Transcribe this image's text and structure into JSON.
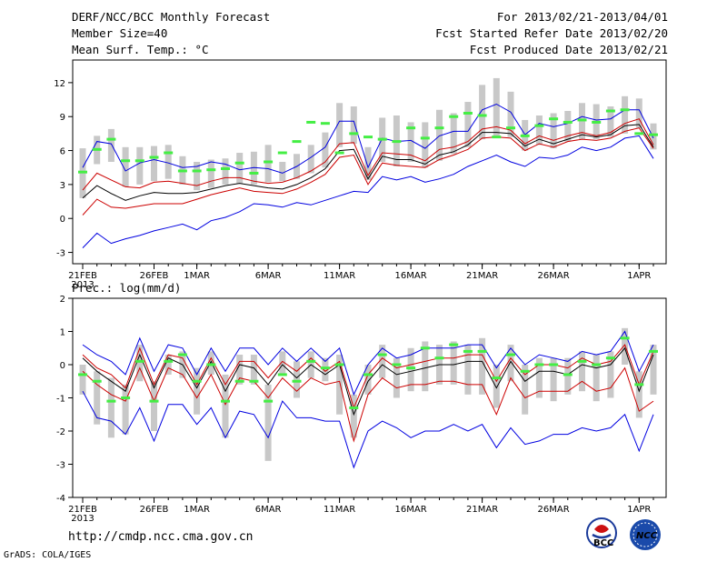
{
  "header": {
    "title": "DERF/NCC/BCC Monthly Forecast",
    "member_size": "Member Size=40",
    "variable": "Mean Surf. Temp.: °C",
    "forecast_period": "For 2013/02/21-2013/04/01",
    "fcst_started": "Fcst Started Refer Date 2013/02/20",
    "fcst_produced": "Fcst Produced Date 2013/02/21"
  },
  "footer": {
    "url": "http://cmdp.ncc.cma.gov.cn",
    "grads_credit": "GrADS: COLA/IGES",
    "logo_bcc_label": "BCC",
    "logo_ncc_label": "NCC"
  },
  "colors": {
    "blue": "#0000e0",
    "red": "#cc0000",
    "black": "#000000",
    "green": "#44ee44",
    "box": "#c8c8c8"
  },
  "chart_data": [
    {
      "type": "line",
      "title": "Mean Surf. Temp.: °C",
      "x_tick_labels": [
        "21FEB",
        "26FEB",
        "1MAR",
        "6MAR",
        "11MAR",
        "16MAR",
        "21MAR",
        "26MAR",
        "1APR"
      ],
      "x_tick_days": [
        0,
        5,
        8,
        13,
        18,
        23,
        28,
        33,
        39
      ],
      "x_sublabel": "2013",
      "ylim": [
        -4,
        14
      ],
      "y_ticks": [
        -3,
        0,
        3,
        6,
        9,
        12
      ],
      "series": [
        {
          "name": "upper",
          "color": "blue",
          "values": [
            4.5,
            6.8,
            6.6,
            4.2,
            4.9,
            5.2,
            4.9,
            4.5,
            4.6,
            5.0,
            4.8,
            4.3,
            4.5,
            4.4,
            4.0,
            4.6,
            5.4,
            6.3,
            8.6,
            8.6,
            4.5,
            7.1,
            6.8,
            6.9,
            6.2,
            7.3,
            7.7,
            7.7,
            9.6,
            10.1,
            9.4,
            7.4,
            8.4,
            8.1,
            8.4,
            9.0,
            8.7,
            8.8,
            9.6,
            9.6,
            7.1
          ]
        },
        {
          "name": "upper-mid",
          "color": "red",
          "values": [
            2.5,
            4.0,
            3.4,
            2.8,
            2.7,
            3.2,
            3.3,
            3.1,
            2.9,
            3.3,
            3.6,
            3.6,
            3.3,
            3.1,
            3.2,
            3.6,
            4.2,
            5.0,
            6.6,
            6.7,
            3.8,
            5.8,
            5.7,
            5.6,
            5.1,
            6.1,
            6.3,
            6.8,
            7.9,
            8.1,
            7.8,
            6.6,
            7.3,
            6.9,
            7.3,
            7.6,
            7.3,
            7.6,
            8.4,
            8.8,
            6.5
          ]
        },
        {
          "name": "mean",
          "color": "black",
          "values": [
            1.8,
            2.9,
            2.2,
            1.6,
            2.0,
            2.3,
            2.2,
            2.2,
            2.3,
            2.6,
            2.9,
            3.1,
            2.9,
            2.7,
            2.6,
            3.0,
            3.6,
            4.4,
            6.0,
            6.1,
            3.5,
            5.5,
            5.2,
            5.2,
            4.8,
            5.6,
            5.9,
            6.5,
            7.6,
            7.6,
            7.5,
            6.4,
            7.0,
            6.6,
            7.0,
            7.4,
            7.2,
            7.4,
            8.2,
            8.3,
            6.3
          ]
        },
        {
          "name": "lower-mid",
          "color": "red",
          "values": [
            0.3,
            1.7,
            1.0,
            0.9,
            1.1,
            1.3,
            1.3,
            1.3,
            1.7,
            2.1,
            2.4,
            2.7,
            2.4,
            2.3,
            2.2,
            2.6,
            3.2,
            3.9,
            5.4,
            5.6,
            3.0,
            4.9,
            4.7,
            4.6,
            4.5,
            5.2,
            5.6,
            6.1,
            7.1,
            7.2,
            7.1,
            6.0,
            6.6,
            6.3,
            6.8,
            7.0,
            6.9,
            7.1,
            7.7,
            8.0,
            6.2
          ]
        },
        {
          "name": "lower",
          "color": "blue",
          "values": [
            -2.6,
            -1.3,
            -2.2,
            -1.8,
            -1.5,
            -1.1,
            -0.8,
            -0.5,
            -1.0,
            -0.2,
            0.1,
            0.6,
            1.3,
            1.2,
            1.0,
            1.4,
            1.2,
            1.6,
            2.0,
            2.4,
            2.3,
            3.7,
            3.4,
            3.7,
            3.2,
            3.5,
            3.9,
            4.6,
            5.1,
            5.6,
            5.0,
            4.6,
            5.4,
            5.3,
            5.6,
            6.3,
            6.0,
            6.3,
            7.1,
            7.3,
            5.3
          ]
        }
      ],
      "ensemble_box_low": [
        1.8,
        4.8,
        5.0,
        2.8,
        3.0,
        3.3,
        3.5,
        3.0,
        2.5,
        2.7,
        3.0,
        3.1,
        3.0,
        3.2,
        3.3,
        3.5,
        4.0,
        4.5,
        6.3,
        6.6,
        3.4,
        5.0,
        4.6,
        5.0,
        4.5,
        5.1,
        5.7,
        6.3,
        7.0,
        7.1,
        7.2,
        6.0,
        6.5,
        6.2,
        6.8,
        7.0,
        7.0,
        7.2,
        7.5,
        8.0,
        6.1
      ],
      "ensemble_box_high": [
        6.2,
        7.3,
        7.9,
        6.3,
        6.3,
        6.4,
        6.5,
        5.5,
        5.0,
        5.2,
        5.3,
        5.8,
        5.9,
        6.5,
        5.0,
        5.7,
        6.5,
        7.6,
        10.2,
        9.9,
        6.3,
        8.9,
        9.1,
        8.5,
        8.5,
        9.6,
        9.3,
        10.3,
        11.8,
        12.4,
        11.2,
        8.7,
        9.1,
        9.3,
        9.5,
        10.2,
        10.1,
        9.9,
        10.8,
        10.6,
        8.4
      ],
      "ensemble_mean_mark": [
        4.1,
        6.1,
        7.0,
        5.1,
        5.1,
        5.4,
        5.8,
        4.2,
        4.2,
        4.3,
        4.4,
        4.9,
        4.0,
        5.0,
        5.8,
        6.8,
        8.5,
        8.4,
        5.8,
        7.5,
        7.2,
        7.0,
        6.8,
        8.0,
        7.1,
        8.0,
        9.0,
        9.3,
        9.1,
        7.2,
        8.0,
        7.3,
        8.2,
        8.8,
        8.5,
        8.7,
        8.5,
        9.5,
        9.6,
        7.5,
        7.4
      ]
    },
    {
      "type": "line",
      "title": "Prec.: log(mm/d)",
      "x_tick_labels": [
        "21FEB",
        "26FEB",
        "1MAR",
        "6MAR",
        "11MAR",
        "16MAR",
        "21MAR",
        "26MAR",
        "1APR"
      ],
      "x_tick_days": [
        0,
        5,
        8,
        13,
        18,
        23,
        28,
        33,
        39
      ],
      "x_sublabel": "2013",
      "ylim": [
        -4,
        2
      ],
      "y_ticks": [
        -4,
        -3,
        -2,
        -1,
        0,
        1,
        2
      ],
      "series": [
        {
          "name": "upper",
          "color": "blue",
          "values": [
            0.6,
            0.3,
            0.1,
            -0.3,
            0.8,
            -0.2,
            0.6,
            0.5,
            -0.3,
            0.5,
            -0.2,
            0.5,
            0.5,
            0.0,
            0.5,
            0.1,
            0.5,
            0.1,
            0.5,
            -0.9,
            0.0,
            0.5,
            0.2,
            0.3,
            0.5,
            0.5,
            0.5,
            0.6,
            0.6,
            -0.1,
            0.5,
            0.0,
            0.3,
            0.2,
            0.1,
            0.4,
            0.3,
            0.4,
            1.0,
            -0.2,
            0.6
          ]
        },
        {
          "name": "upper-mid",
          "color": "red",
          "values": [
            0.3,
            -0.1,
            -0.3,
            -0.7,
            0.5,
            -0.6,
            0.3,
            0.2,
            -0.6,
            0.2,
            -0.6,
            0.1,
            0.1,
            -0.4,
            0.1,
            -0.2,
            0.2,
            -0.2,
            0.1,
            -1.3,
            -0.3,
            0.2,
            -0.1,
            0.0,
            0.1,
            0.2,
            0.2,
            0.3,
            0.3,
            -0.5,
            0.2,
            -0.3,
            0.0,
            0.0,
            -0.1,
            0.2,
            0.0,
            0.1,
            0.6,
            -0.6,
            0.4
          ]
        },
        {
          "name": "mean",
          "color": "black",
          "values": [
            0.2,
            -0.2,
            -0.5,
            -0.8,
            0.3,
            -0.7,
            0.2,
            0.0,
            -0.7,
            0.1,
            -0.8,
            0.0,
            -0.1,
            -0.6,
            0.0,
            -0.4,
            0.0,
            -0.3,
            0.0,
            -1.5,
            -0.5,
            0.0,
            -0.3,
            -0.2,
            -0.1,
            0.0,
            0.0,
            0.1,
            0.1,
            -0.7,
            0.1,
            -0.5,
            -0.2,
            -0.2,
            -0.3,
            0.0,
            -0.1,
            0.0,
            0.5,
            -0.8,
            0.3
          ]
        },
        {
          "name": "lower-mid",
          "color": "red",
          "values": [
            -0.2,
            -0.6,
            -0.9,
            -1.1,
            -0.1,
            -1.1,
            -0.1,
            -0.3,
            -1.0,
            -0.3,
            -1.2,
            -0.4,
            -0.5,
            -1.0,
            -0.4,
            -0.8,
            -0.4,
            -0.6,
            -0.5,
            -2.3,
            -0.9,
            -0.4,
            -0.7,
            -0.6,
            -0.6,
            -0.5,
            -0.5,
            -0.6,
            -0.6,
            -1.5,
            -0.4,
            -1.0,
            -0.8,
            -0.8,
            -0.8,
            -0.5,
            -0.8,
            -0.7,
            -0.1,
            -1.4,
            -1.1
          ]
        },
        {
          "name": "lower",
          "color": "blue",
          "values": [
            -0.8,
            -1.6,
            -1.7,
            -2.1,
            -1.3,
            -2.3,
            -1.2,
            -1.2,
            -1.8,
            -1.3,
            -2.2,
            -1.4,
            -1.5,
            -2.2,
            -1.1,
            -1.6,
            -1.6,
            -1.7,
            -1.7,
            -3.1,
            -2.0,
            -1.7,
            -1.9,
            -2.2,
            -2.0,
            -2.0,
            -1.8,
            -2.0,
            -1.8,
            -2.5,
            -1.9,
            -2.4,
            -2.3,
            -2.1,
            -2.1,
            -1.9,
            -2.0,
            -1.9,
            -1.5,
            -2.6,
            -1.5
          ]
        }
      ],
      "ensemble_box_low": [
        -0.9,
        -1.8,
        -2.2,
        -2.1,
        -0.5,
        -2.0,
        -0.3,
        -0.4,
        -1.5,
        -0.3,
        -2.2,
        -0.6,
        -0.6,
        -2.9,
        -0.3,
        -1.0,
        -0.4,
        -0.5,
        -1.5,
        -2.2,
        -0.9,
        -0.4,
        -1.0,
        -0.8,
        -0.8,
        -0.6,
        -0.6,
        -0.9,
        -0.9,
        -1.3,
        -0.5,
        -1.5,
        -1.0,
        -1.1,
        -0.9,
        -0.8,
        -1.1,
        -1.0,
        0.0,
        -1.6,
        -0.9
      ],
      "ensemble_box_high": [
        0.0,
        -0.2,
        -0.4,
        -0.6,
        0.6,
        -0.5,
        0.3,
        0.4,
        -0.1,
        0.4,
        -0.3,
        0.3,
        0.3,
        -0.6,
        0.4,
        0.1,
        0.4,
        0.2,
        0.3,
        -0.9,
        0.0,
        0.6,
        0.2,
        0.5,
        0.7,
        0.6,
        0.7,
        0.6,
        0.8,
        0.0,
        0.6,
        0.0,
        0.2,
        0.2,
        0.2,
        0.4,
        0.3,
        0.4,
        1.1,
        -0.2,
        0.6
      ],
      "ensemble_mean_mark": [
        -0.3,
        -0.5,
        -1.1,
        -1.0,
        0.1,
        -1.1,
        0.1,
        0.3,
        -0.5,
        0.0,
        -1.1,
        -0.5,
        -0.5,
        -1.1,
        -0.3,
        -0.5,
        0.1,
        -0.1,
        0.0,
        -1.3,
        -0.3,
        0.3,
        0.0,
        -0.1,
        0.5,
        0.2,
        0.6,
        0.4,
        0.4,
        -0.4,
        0.3,
        -0.2,
        0.0,
        0.0,
        -0.3,
        0.1,
        0.0,
        0.2,
        0.8,
        -0.6,
        0.4
      ]
    }
  ]
}
